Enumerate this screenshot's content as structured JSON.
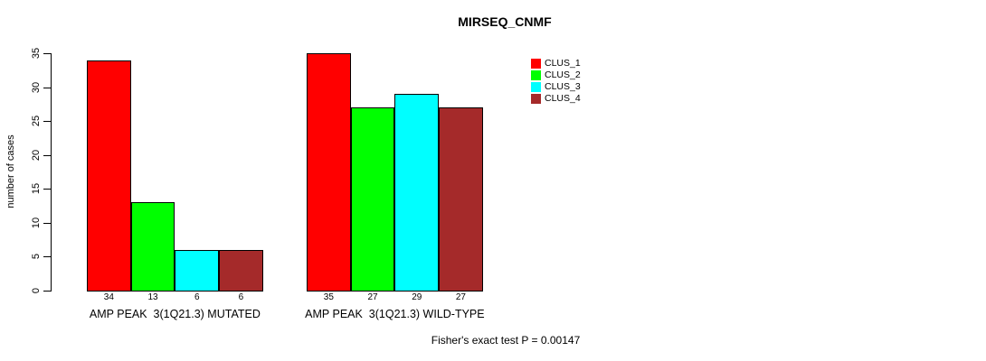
{
  "title": "MIRSEQ_CNMF",
  "chart_data": {
    "type": "bar",
    "title": "MIRSEQ_CNMF",
    "ylabel": "number of cases",
    "xlabel": "",
    "ylim": [
      0,
      35
    ],
    "yticks": [
      0,
      5,
      10,
      15,
      20,
      25,
      30,
      35
    ],
    "grid": false,
    "legend_position": "right-outside",
    "bar_border_color": "#000000",
    "groups": [
      {
        "label": "AMP PEAK  3(1Q21.3) MUTATED",
        "values": [
          34,
          13,
          6,
          6
        ]
      },
      {
        "label": "AMP PEAK  3(1Q21.3) WILD-TYPE",
        "values": [
          35,
          27,
          29,
          27
        ]
      }
    ],
    "series": [
      {
        "name": "CLUS_1",
        "color": "#ff0000"
      },
      {
        "name": "CLUS_2",
        "color": "#00ff00"
      },
      {
        "name": "CLUS_3",
        "color": "#00ffff"
      },
      {
        "name": "CLUS_4",
        "color": "#a52a2a"
      }
    ],
    "bar_value_labels": [
      [
        "34",
        "13",
        "6",
        "6"
      ],
      [
        "35",
        "27",
        "29",
        "27"
      ]
    ],
    "annotation": "Fisher's exact test P = 0.00147"
  }
}
